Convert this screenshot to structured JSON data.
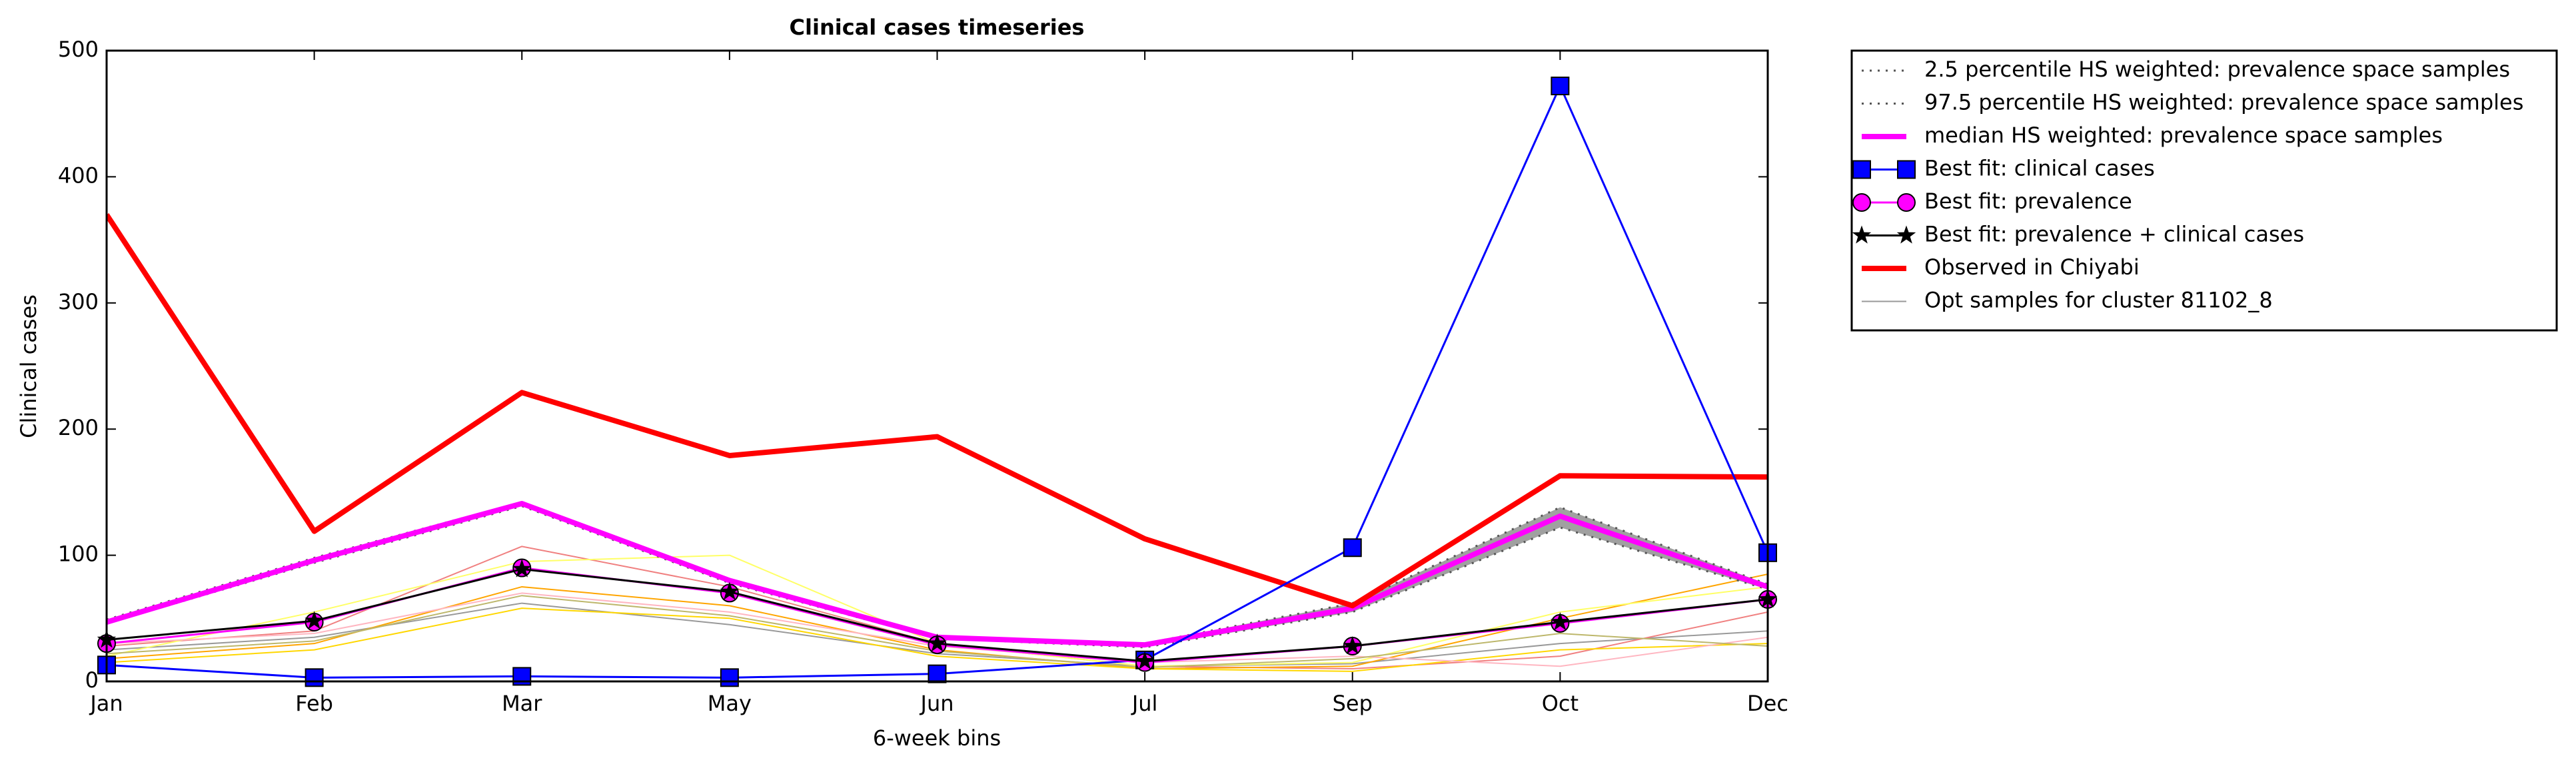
{
  "chart_data": {
    "type": "line",
    "title": "Clinical cases timeseries",
    "xlabel": "6-week bins",
    "ylabel": "Clinical cases",
    "categories": [
      "Jan",
      "Feb",
      "Mar",
      "May",
      "Jun",
      "Jul",
      "Sep",
      "Oct",
      "Dec"
    ],
    "ylim": [
      0,
      500
    ],
    "yticks": [
      0,
      100,
      200,
      300,
      400,
      500
    ],
    "grid": false,
    "legend": "outside upper right",
    "band": {
      "lower": 0,
      "upper": 1,
      "color": "#888888"
    },
    "series": [
      {
        "name": "2.5 percentile HS weighted: prevalence space samples",
        "color": "#555555",
        "linestyle": "dotted",
        "linewidth": 3,
        "values": [
          46,
          94,
          139,
          78,
          34,
          27,
          55,
          122,
          73
        ]
      },
      {
        "name": "97.5 percentile HS weighted: prevalence space samples",
        "color": "#555555",
        "linestyle": "dotted",
        "linewidth": 3,
        "values": [
          49,
          98,
          142,
          81,
          36,
          30,
          62,
          138,
          77
        ]
      },
      {
        "name": "median HS weighted: prevalence space samples",
        "color": "#ff00ff",
        "linestyle": "solid",
        "linewidth": 8,
        "values": [
          47,
          96,
          141,
          80,
          35,
          29,
          58,
          131,
          75
        ]
      },
      {
        "name": "Best fit: clinical cases",
        "color": "#0000ff",
        "linestyle": "solid",
        "linewidth": 3,
        "marker": "square",
        "values": [
          13,
          3,
          4,
          3,
          6,
          17,
          106,
          472,
          102
        ]
      },
      {
        "name": "Best fit: prevalence",
        "color": "#ff00ff",
        "linestyle": "solid",
        "linewidth": 3,
        "marker": "circle",
        "values": [
          30,
          47,
          90,
          70,
          29,
          15,
          28,
          46,
          65
        ]
      },
      {
        "name": "Best fit: prevalence + clinical cases",
        "color": "#000000",
        "linestyle": "solid",
        "linewidth": 3,
        "marker": "star",
        "values": [
          33,
          48,
          89,
          71,
          30,
          16,
          28,
          47,
          65
        ]
      },
      {
        "name": "Observed in Chiyabi",
        "color": "#ff0000",
        "linestyle": "solid",
        "linewidth": 8,
        "values": [
          370,
          119,
          229,
          179,
          194,
          113,
          60,
          163,
          162
        ]
      },
      {
        "name": "Opt samples for cluster 81102_8",
        "color": "#999999",
        "linestyle": "solid",
        "linewidth": 2,
        "values": [
          25,
          35,
          62,
          45,
          22,
          12,
          14,
          30,
          40
        ]
      },
      {
        "color": "#f08080",
        "linestyle": "solid",
        "linewidth": 2,
        "values": [
          28,
          40,
          107,
          75,
          30,
          12,
          10,
          20,
          55
        ]
      },
      {
        "color": "#ffa500",
        "linestyle": "solid",
        "linewidth": 2,
        "values": [
          18,
          30,
          75,
          60,
          25,
          10,
          12,
          50,
          85
        ]
      },
      {
        "color": "#ffff66",
        "linestyle": "solid",
        "linewidth": 2,
        "values": [
          20,
          55,
          95,
          100,
          30,
          12,
          15,
          55,
          75
        ]
      },
      {
        "color": "#ffd700",
        "linestyle": "solid",
        "linewidth": 2,
        "values": [
          15,
          25,
          58,
          50,
          20,
          10,
          8,
          25,
          30
        ]
      },
      {
        "color": "#ffb6c1",
        "linestyle": "solid",
        "linewidth": 2,
        "values": [
          30,
          38,
          70,
          55,
          28,
          15,
          20,
          12,
          35
        ]
      },
      {
        "color": "#bdb76b",
        "linestyle": "solid",
        "linewidth": 2,
        "values": [
          22,
          32,
          68,
          52,
          24,
          11,
          18,
          38,
          28
        ]
      }
    ]
  }
}
